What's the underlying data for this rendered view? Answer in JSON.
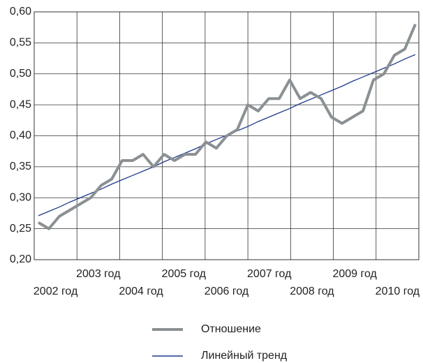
{
  "chart_data": {
    "type": "line",
    "categories": [
      null,
      "2002 год",
      null,
      null,
      null,
      "2003 год",
      null,
      null,
      null,
      "2004 год",
      null,
      null,
      null,
      "2005 год",
      null,
      null,
      null,
      "2006 год",
      null,
      null,
      null,
      "2007 год",
      null,
      null,
      null,
      "2008 год",
      null,
      null,
      null,
      "2009 год",
      null,
      null,
      null,
      "2010 год",
      null,
      null,
      null
    ],
    "series": [
      {
        "name": "Отношение",
        "color": "#8a9093",
        "values": [
          0.26,
          0.25,
          0.27,
          0.28,
          0.29,
          0.3,
          0.32,
          0.33,
          0.36,
          0.36,
          0.37,
          0.35,
          0.37,
          0.36,
          0.37,
          0.37,
          0.39,
          0.38,
          0.4,
          0.41,
          0.45,
          0.44,
          0.46,
          0.46,
          0.49,
          0.46,
          0.47,
          0.46,
          0.43,
          0.42,
          0.43,
          0.44,
          0.49,
          0.5,
          0.53,
          0.54,
          0.58
        ]
      },
      {
        "name": "Линейный тренд",
        "color": "#1f3a8a",
        "values": [
          0.271,
          0.278,
          0.285,
          0.293,
          0.3,
          0.307,
          0.314,
          0.322,
          0.329,
          0.336,
          0.343,
          0.35,
          0.358,
          0.365,
          0.372,
          0.379,
          0.387,
          0.394,
          0.401,
          0.408,
          0.415,
          0.423,
          0.43,
          0.437,
          0.444,
          0.452,
          0.459,
          0.466,
          0.473,
          0.48,
          0.488,
          0.495,
          0.502,
          0.509,
          0.516,
          0.524,
          0.531
        ]
      }
    ],
    "ylim": [
      0.2,
      0.6
    ],
    "yticks": [
      {
        "value": 0.2,
        "label": "0,20"
      },
      {
        "value": 0.25,
        "label": "0,25"
      },
      {
        "value": 0.3,
        "label": "0,30"
      },
      {
        "value": 0.35,
        "label": "0,35"
      },
      {
        "value": 0.4,
        "label": "0,40"
      },
      {
        "value": 0.45,
        "label": "0,45"
      },
      {
        "value": 0.5,
        "label": "0,50"
      },
      {
        "value": 0.55,
        "label": "0,55"
      },
      {
        "value": 0.6,
        "label": "0,60"
      }
    ],
    "grid": true
  }
}
